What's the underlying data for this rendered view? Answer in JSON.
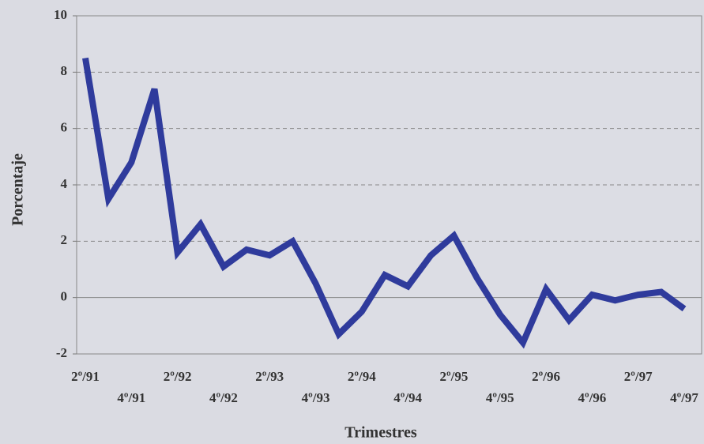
{
  "chart_data": {
    "type": "line",
    "xlabel": "Trimestres",
    "ylabel": "Porcentaje",
    "categories": [
      "2º/91",
      null,
      "4º/91",
      null,
      "2º/92",
      null,
      "4º/92",
      null,
      "2º/93",
      null,
      "4º/93",
      null,
      "2º/94",
      null,
      "4º/94",
      null,
      "2º/95",
      null,
      "4º/95",
      null,
      "2º/96",
      null,
      "4º/96",
      null,
      "2º/97",
      null,
      "4º/97"
    ],
    "series": [
      {
        "name": "Porcentaje",
        "color": "#2f3b9c",
        "values": [
          8.5,
          3.5,
          4.8,
          7.4,
          1.6,
          2.6,
          1.1,
          1.7,
          1.5,
          2.0,
          0.5,
          -1.3,
          -0.5,
          0.8,
          0.4,
          1.5,
          2.2,
          0.7,
          -0.6,
          -1.6,
          0.3,
          -0.8,
          0.1,
          -0.1,
          0.1,
          0.2,
          -0.4
        ]
      }
    ],
    "ylim": [
      -2,
      10
    ],
    "yticks": [
      -2,
      0,
      2,
      4,
      6,
      8,
      10
    ],
    "grid": true
  }
}
